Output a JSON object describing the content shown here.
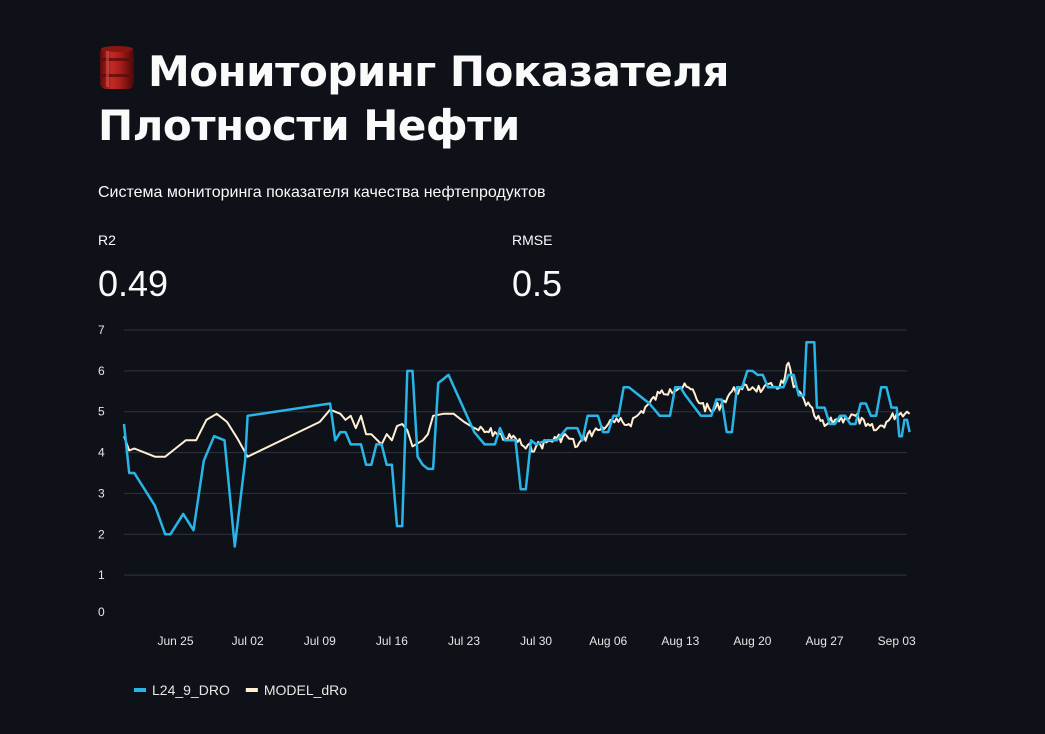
{
  "header": {
    "icon": "oil-barrel-icon",
    "title": "Мониторинг Показателя Плотности Нефти",
    "subtitle": "Система мониторинга показателя качества нефтепродуктов"
  },
  "metrics": [
    {
      "label": "R2",
      "value": "0.49"
    },
    {
      "label": "RMSE",
      "value": "0.5"
    }
  ],
  "colors": {
    "background": "#0e1117",
    "series_actual": "#29b5e8",
    "series_model": "#ffefd5",
    "grid": "#31333f",
    "axis_text": "#e6e6e6"
  },
  "chart_data": {
    "type": "line",
    "title": "",
    "xlabel": "",
    "ylabel": "",
    "x_type": "date",
    "x_range": [
      "2023-06-20",
      "2023-09-04"
    ],
    "ylim": [
      0,
      7
    ],
    "yticks": [
      0,
      1,
      2,
      3,
      4,
      5,
      6,
      7
    ],
    "xticks": [
      {
        "date": "2023-06-25",
        "label": "Jun 25"
      },
      {
        "date": "2023-07-02",
        "label": "Jul 02"
      },
      {
        "date": "2023-07-09",
        "label": "Jul 09"
      },
      {
        "date": "2023-07-16",
        "label": "Jul 16"
      },
      {
        "date": "2023-07-23",
        "label": "Jul 23"
      },
      {
        "date": "2023-07-30",
        "label": "Jul 30"
      },
      {
        "date": "2023-08-06",
        "label": "Aug 06"
      },
      {
        "date": "2023-08-13",
        "label": "Aug 13"
      },
      {
        "date": "2023-08-20",
        "label": "Aug 20"
      },
      {
        "date": "2023-08-27",
        "label": "Aug 27"
      },
      {
        "date": "2023-09-03",
        "label": "Sep 03"
      }
    ],
    "grid": true,
    "legend": "bottom-left",
    "series": [
      {
        "name": "L24_9_DRO",
        "color": "#29b5e8",
        "points": [
          [
            "2023-06-20",
            4.7
          ],
          [
            "2023-06-20T12:00",
            3.5
          ],
          [
            "2023-06-21",
            3.5
          ],
          [
            "2023-06-23",
            2.7
          ],
          [
            "2023-06-24",
            2.0
          ],
          [
            "2023-06-24T12:00",
            2.0
          ],
          [
            "2023-06-25T18:00",
            2.5
          ],
          [
            "2023-06-26T18:00",
            2.1
          ],
          [
            "2023-06-27T18:00",
            3.8
          ],
          [
            "2023-06-28T18:00",
            4.4
          ],
          [
            "2023-06-29T18:00",
            4.3
          ],
          [
            "2023-06-30T18:00",
            1.7
          ],
          [
            "2023-07-01T18:00",
            3.8
          ],
          [
            "2023-07-02",
            4.9
          ],
          [
            "2023-07-10",
            5.2
          ],
          [
            "2023-07-10T12:00",
            4.3
          ],
          [
            "2023-07-11",
            4.5
          ],
          [
            "2023-07-11T12:00",
            4.5
          ],
          [
            "2023-07-12",
            4.2
          ],
          [
            "2023-07-13",
            4.2
          ],
          [
            "2023-07-13T12:00",
            3.7
          ],
          [
            "2023-07-14",
            3.7
          ],
          [
            "2023-07-14T12:00",
            4.2
          ],
          [
            "2023-07-15",
            4.2
          ],
          [
            "2023-07-15T12:00",
            3.7
          ],
          [
            "2023-07-16",
            3.7
          ],
          [
            "2023-07-16T12:00",
            2.2
          ],
          [
            "2023-07-17",
            2.2
          ],
          [
            "2023-07-17T12:00",
            6.0
          ],
          [
            "2023-07-18",
            6.0
          ],
          [
            "2023-07-18T12:00",
            3.9
          ],
          [
            "2023-07-19",
            3.7
          ],
          [
            "2023-07-19T12:00",
            3.6
          ],
          [
            "2023-07-20",
            3.6
          ],
          [
            "2023-07-20T12:00",
            5.7
          ],
          [
            "2023-07-21",
            5.8
          ],
          [
            "2023-07-21T12:00",
            5.9
          ],
          [
            "2023-07-24",
            4.5
          ],
          [
            "2023-07-25",
            4.2
          ],
          [
            "2023-07-26",
            4.2
          ],
          [
            "2023-07-26T12:00",
            4.6
          ],
          [
            "2023-07-27",
            4.3
          ],
          [
            "2023-07-28",
            4.3
          ],
          [
            "2023-07-28T12:00",
            3.1
          ],
          [
            "2023-07-29",
            3.1
          ],
          [
            "2023-07-29T12:00",
            4.3
          ],
          [
            "2023-07-30",
            4.2
          ],
          [
            "2023-07-31",
            4.3
          ],
          [
            "2023-08-01",
            4.3
          ],
          [
            "2023-08-02",
            4.6
          ],
          [
            "2023-08-03",
            4.6
          ],
          [
            "2023-08-03T12:00",
            4.3
          ],
          [
            "2023-08-04",
            4.9
          ],
          [
            "2023-08-05",
            4.9
          ],
          [
            "2023-08-05T12:00",
            4.5
          ],
          [
            "2023-08-06",
            4.5
          ],
          [
            "2023-08-06T12:00",
            4.9
          ],
          [
            "2023-08-07",
            4.9
          ],
          [
            "2023-08-07T12:00",
            5.6
          ],
          [
            "2023-08-08",
            5.6
          ],
          [
            "2023-08-10",
            5.2
          ],
          [
            "2023-08-11",
            4.9
          ],
          [
            "2023-08-12",
            4.9
          ],
          [
            "2023-08-12T12:00",
            5.6
          ],
          [
            "2023-08-13",
            5.6
          ],
          [
            "2023-08-13T12:00",
            5.4
          ],
          [
            "2023-08-15",
            4.9
          ],
          [
            "2023-08-16",
            4.9
          ],
          [
            "2023-08-16T12:00",
            5.3
          ],
          [
            "2023-08-17",
            5.3
          ],
          [
            "2023-08-17T12:00",
            4.5
          ],
          [
            "2023-08-18",
            4.5
          ],
          [
            "2023-08-18T12:00",
            5.6
          ],
          [
            "2023-08-19",
            5.6
          ],
          [
            "2023-08-19T12:00",
            6.0
          ],
          [
            "2023-08-20",
            6.0
          ],
          [
            "2023-08-20T12:00",
            5.9
          ],
          [
            "2023-08-21",
            5.9
          ],
          [
            "2023-08-21T12:00",
            5.6
          ],
          [
            "2023-08-23",
            5.6
          ],
          [
            "2023-08-23T12:00",
            5.9
          ],
          [
            "2023-08-24",
            5.9
          ],
          [
            "2023-08-24T12:00",
            5.4
          ],
          [
            "2023-08-25",
            5.4
          ],
          [
            "2023-08-25T06:00",
            6.7
          ],
          [
            "2023-08-26",
            6.7
          ],
          [
            "2023-08-26T06:00",
            5.1
          ],
          [
            "2023-08-27",
            5.1
          ],
          [
            "2023-08-27T12:00",
            4.7
          ],
          [
            "2023-08-28",
            4.7
          ],
          [
            "2023-08-28T12:00",
            4.9
          ],
          [
            "2023-08-29",
            4.9
          ],
          [
            "2023-08-29T12:00",
            4.7
          ],
          [
            "2023-08-30",
            4.7
          ],
          [
            "2023-08-30T12:00",
            5.2
          ],
          [
            "2023-08-31",
            5.2
          ],
          [
            "2023-08-31T12:00",
            4.9
          ],
          [
            "2023-09-01",
            4.9
          ],
          [
            "2023-09-01T12:00",
            5.6
          ],
          [
            "2023-09-02",
            5.6
          ],
          [
            "2023-09-02T12:00",
            5.1
          ],
          [
            "2023-09-03",
            5.1
          ],
          [
            "2023-09-03T06:00",
            4.4
          ],
          [
            "2023-09-03T12:00",
            4.4
          ],
          [
            "2023-09-03T18:00",
            4.8
          ],
          [
            "2023-09-04",
            4.8
          ],
          [
            "2023-09-04T06:00",
            4.5
          ]
        ]
      },
      {
        "name": "MODEL_dRo",
        "color": "#ffefd5",
        "points": [
          [
            "2023-06-20",
            4.4
          ],
          [
            "2023-06-20T12:00",
            4.05
          ],
          [
            "2023-06-21",
            4.1
          ],
          [
            "2023-06-22",
            4.0
          ],
          [
            "2023-06-23",
            3.9
          ],
          [
            "2023-06-24",
            3.9
          ],
          [
            "2023-06-25",
            4.1
          ],
          [
            "2023-06-26",
            4.3
          ],
          [
            "2023-06-27",
            4.3
          ],
          [
            "2023-06-28",
            4.8
          ],
          [
            "2023-06-29",
            4.95
          ],
          [
            "2023-06-30",
            4.75
          ],
          [
            "2023-07-01",
            4.35
          ],
          [
            "2023-07-02",
            3.9
          ],
          [
            "2023-07-09",
            4.75
          ],
          [
            "2023-07-10",
            5.05
          ],
          [
            "2023-07-11",
            4.95
          ],
          [
            "2023-07-11T12:00",
            4.8
          ],
          [
            "2023-07-12",
            4.9
          ],
          [
            "2023-07-12T12:00",
            4.6
          ],
          [
            "2023-07-13",
            4.9
          ],
          [
            "2023-07-13T12:00",
            4.45
          ],
          [
            "2023-07-14",
            4.45
          ],
          [
            "2023-07-15",
            4.2
          ],
          [
            "2023-07-15T12:00",
            4.45
          ],
          [
            "2023-07-16",
            4.3
          ],
          [
            "2023-07-16T12:00",
            4.65
          ],
          [
            "2023-07-17",
            4.7
          ],
          [
            "2023-07-17T12:00",
            4.55
          ],
          [
            "2023-07-18",
            4.15
          ],
          [
            "2023-07-19",
            4.3
          ],
          [
            "2023-07-19T12:00",
            4.45
          ],
          [
            "2023-07-20",
            4.9
          ],
          [
            "2023-07-21",
            4.95
          ],
          [
            "2023-07-22",
            4.95
          ],
          [
            "2023-07-23",
            4.75
          ],
          [
            "2023-07-24",
            4.6
          ],
          [
            "2023-07-25",
            4.5
          ],
          [
            "2023-07-26",
            4.5
          ],
          [
            "2023-07-27",
            4.35
          ],
          [
            "2023-07-28",
            4.35
          ],
          [
            "2023-07-29",
            4.1
          ],
          [
            "2023-07-30",
            4.15
          ],
          [
            "2023-07-31",
            4.25
          ],
          [
            "2023-08-01",
            4.35
          ],
          [
            "2023-08-02",
            4.4
          ],
          [
            "2023-08-03",
            4.15
          ],
          [
            "2023-08-04",
            4.45
          ],
          [
            "2023-08-05",
            4.55
          ],
          [
            "2023-08-06",
            4.7
          ],
          [
            "2023-08-07",
            4.75
          ],
          [
            "2023-08-08",
            4.7
          ],
          [
            "2023-08-09",
            4.95
          ],
          [
            "2023-08-10",
            5.2
          ],
          [
            "2023-08-11",
            5.45
          ],
          [
            "2023-08-12",
            5.55
          ],
          [
            "2023-08-13",
            5.6
          ],
          [
            "2023-08-14",
            5.55
          ],
          [
            "2023-08-15",
            5.2
          ],
          [
            "2023-08-16",
            5.0
          ],
          [
            "2023-08-17",
            5.2
          ],
          [
            "2023-08-18",
            5.5
          ],
          [
            "2023-08-19",
            5.55
          ],
          [
            "2023-08-20",
            5.6
          ],
          [
            "2023-08-21",
            5.55
          ],
          [
            "2023-08-22",
            5.6
          ],
          [
            "2023-08-23",
            5.7
          ],
          [
            "2023-08-23T12:00",
            6.2
          ],
          [
            "2023-08-24",
            5.6
          ],
          [
            "2023-08-25",
            5.3
          ],
          [
            "2023-08-26",
            4.9
          ],
          [
            "2023-08-27",
            4.65
          ],
          [
            "2023-08-28",
            4.8
          ],
          [
            "2023-08-29",
            4.85
          ],
          [
            "2023-08-30",
            4.9
          ],
          [
            "2023-08-31",
            4.65
          ],
          [
            "2023-09-01",
            4.55
          ],
          [
            "2023-09-02",
            4.75
          ],
          [
            "2023-09-03",
            4.95
          ],
          [
            "2023-09-04",
            5.0
          ],
          [
            "2023-09-04T06:00",
            4.95
          ]
        ],
        "noise_from": "2023-07-24",
        "noise_amplitude": 0.12
      }
    ]
  }
}
